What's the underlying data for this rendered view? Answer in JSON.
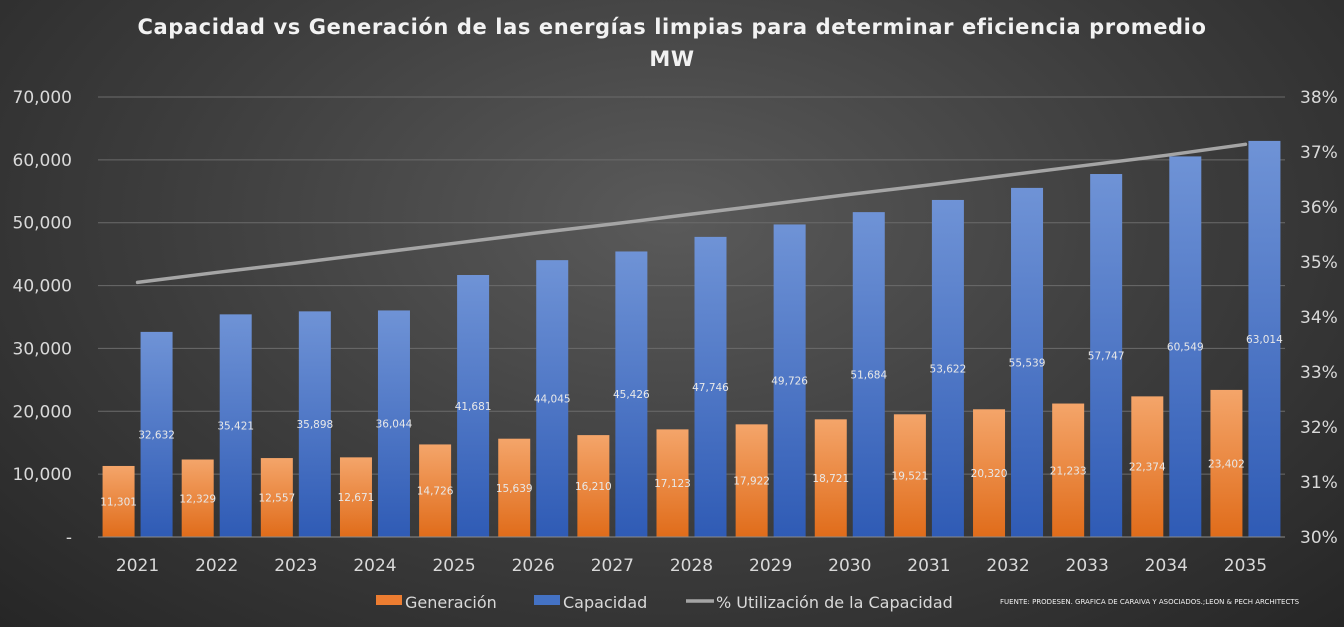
{
  "chart_data": {
    "type": "bar",
    "title": "Capacidad vs Generación de las energías limpias para determinar eficiencia promedio",
    "subtitle": "MW",
    "categories": [
      "2021",
      "2022",
      "2023",
      "2024",
      "2025",
      "2026",
      "2027",
      "2028",
      "2029",
      "2030",
      "2031",
      "2032",
      "2033",
      "2034",
      "2035"
    ],
    "series": [
      {
        "name": "Generación",
        "type": "bar",
        "axis": "left",
        "color": "#ed7d31",
        "values": [
          11301,
          12329,
          12557,
          12671,
          14726,
          15639,
          16210,
          17123,
          17922,
          18721,
          19521,
          20320,
          21233,
          22374,
          23402
        ],
        "labels": [
          "11,301",
          "12,329",
          "12,557",
          "12,671",
          "14,726",
          "15,639",
          "16,210",
          "17,123",
          "17,922",
          "18,721",
          "19,521",
          "20,320",
          "21,233",
          "22,374",
          "23,402"
        ]
      },
      {
        "name": "Capacidad",
        "type": "bar",
        "axis": "left",
        "color": "#4472c4",
        "values": [
          32632,
          35421,
          35898,
          36044,
          41681,
          44045,
          45426,
          47746,
          49726,
          51684,
          53622,
          55539,
          57747,
          60549,
          63014
        ],
        "labels": [
          "32,632",
          "35,421",
          "35,898",
          "36,044",
          "41,681",
          "44,045",
          "45,426",
          "47,746",
          "49,726",
          "51,684",
          "53,622",
          "55,539",
          "57,747",
          "60,549",
          "63,014"
        ]
      },
      {
        "name": "% Utilización de la Capacidad",
        "type": "line",
        "axis": "right",
        "color": "#a5a5a5",
        "values": [
          34.63,
          34.81,
          34.98,
          35.16,
          35.34,
          35.52,
          35.69,
          35.87,
          36.05,
          36.23,
          36.4,
          36.58,
          36.76,
          36.94,
          37.14
        ]
      }
    ],
    "y_left": {
      "min": 0,
      "max": 70000,
      "ticks": [
        0,
        10000,
        20000,
        30000,
        40000,
        50000,
        60000,
        70000
      ],
      "tick_labels": [
        "-",
        "10,000",
        "20,000",
        "30,000",
        "40,000",
        "50,000",
        "60,000",
        "70,000"
      ]
    },
    "y_right": {
      "min": 30,
      "max": 38,
      "ticks": [
        30,
        31,
        32,
        33,
        34,
        35,
        36,
        37,
        38
      ],
      "tick_labels": [
        "30%",
        "31%",
        "32%",
        "33%",
        "34%",
        "35%",
        "36%",
        "37%",
        "38%"
      ]
    },
    "grid": true,
    "legend_position": "bottom",
    "source": "FUENTE: PRODESEN. GRAFICA DE CARAIVA Y ASOCIADOS.;LEON & PECH ARCHITECTS"
  }
}
